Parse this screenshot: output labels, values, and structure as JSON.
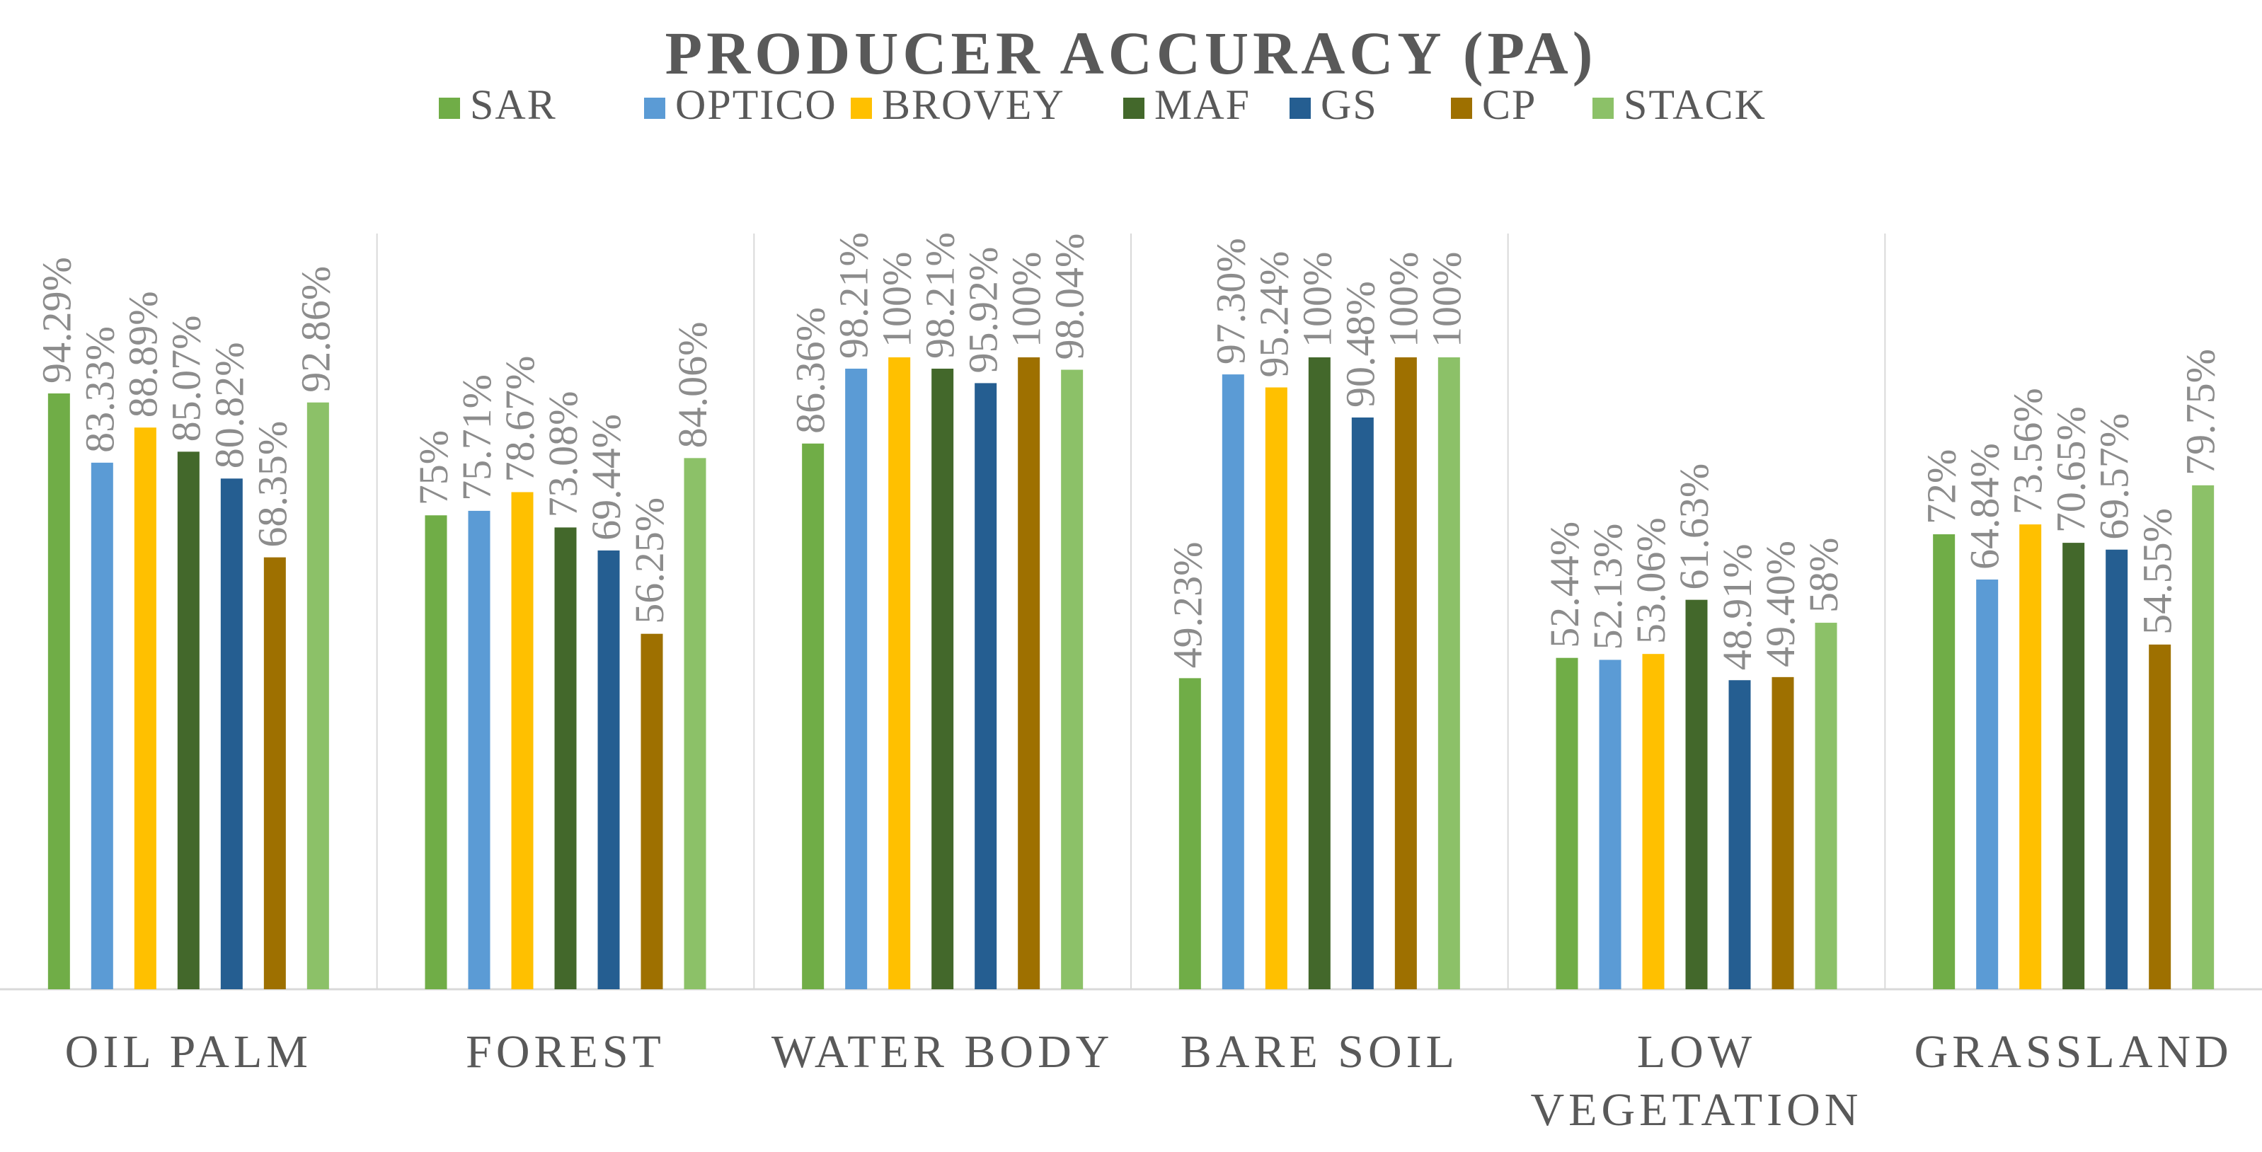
{
  "chart_data": {
    "type": "bar",
    "title": "PRODUCER ACCURACY (PA)",
    "xlabel": "",
    "ylabel": "",
    "ylim": [
      0,
      100
    ],
    "grid": false,
    "legend_position": "top",
    "value_suffix": "%",
    "categories": [
      [
        "OIL PALM"
      ],
      [
        "FOREST"
      ],
      [
        "WATER BODY"
      ],
      [
        "BARE SOIL"
      ],
      [
        "LOW",
        "VEGETATION"
      ],
      [
        "GRASSLAND"
      ]
    ],
    "series": [
      {
        "name": "SAR",
        "color": "#70ad47",
        "values": [
          94.29,
          75,
          86.36,
          49.23,
          52.44,
          72
        ],
        "labels": [
          "94.29%",
          "75%",
          "86.36%",
          "49.23%",
          "52.44%",
          "72%"
        ]
      },
      {
        "name": "OPTICO",
        "color": "#5b9bd5",
        "values": [
          83.33,
          75.71,
          98.21,
          97.3,
          52.13,
          64.84
        ],
        "labels": [
          "83.33%",
          "75.71%",
          "98.21%",
          "97.30%",
          "52.13%",
          "64.84%"
        ]
      },
      {
        "name": "BROVEY",
        "color": "#ffc000",
        "values": [
          88.89,
          78.67,
          100,
          95.24,
          53.06,
          73.56
        ],
        "labels": [
          "88.89%",
          "78.67%",
          "100%",
          "95.24%",
          "53.06%",
          "73.56%"
        ]
      },
      {
        "name": "MAF",
        "color": "#43682b",
        "values": [
          85.07,
          73.08,
          98.21,
          100,
          61.63,
          70.65
        ],
        "labels": [
          "85.07%",
          "73.08%",
          "98.21%",
          "100%",
          "61.63%",
          "70.65%"
        ]
      },
      {
        "name": "GS",
        "color": "#255e91",
        "values": [
          80.82,
          69.44,
          95.92,
          90.48,
          48.91,
          69.57
        ],
        "labels": [
          "80.82%",
          "69.44%",
          "95.92%",
          "90.48%",
          "48.91%",
          "69.57%"
        ]
      },
      {
        "name": "CP",
        "color": "#9e7000",
        "values": [
          68.35,
          56.25,
          100,
          100,
          49.4,
          54.55
        ],
        "labels": [
          "68.35%",
          "56.25%",
          "100%",
          "100%",
          "49.40%",
          "54.55%"
        ]
      },
      {
        "name": "STACK",
        "color": "#8cc168",
        "values": [
          92.86,
          84.06,
          98.04,
          100,
          58,
          79.75
        ],
        "labels": [
          "92.86%",
          "84.06%",
          "98.04%",
          "100%",
          "58%",
          "79.75%"
        ]
      }
    ]
  }
}
